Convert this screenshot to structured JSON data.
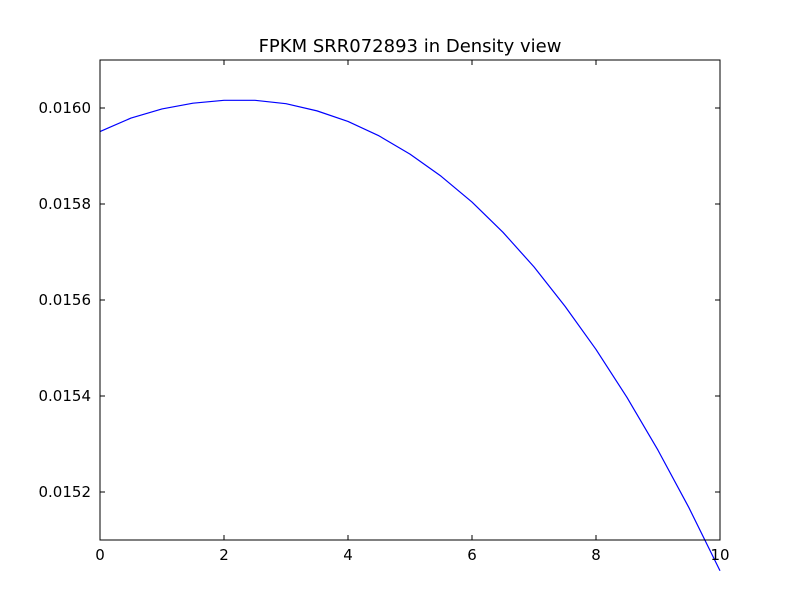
{
  "chart_data": {
    "type": "line",
    "title": "FPKM SRR072893 in Density view",
    "xlabel": "",
    "ylabel": "",
    "xlim": [
      0,
      10
    ],
    "ylim": [
      0.0151,
      0.0161
    ],
    "x_ticks": [
      0,
      2,
      4,
      6,
      8,
      10
    ],
    "x_tick_labels": [
      "0",
      "2",
      "4",
      "6",
      "8",
      "10"
    ],
    "y_ticks": [
      0.0152,
      0.0154,
      0.0156,
      0.0158,
      0.016
    ],
    "y_tick_labels": [
      "0.0152",
      "0.0154",
      "0.0156",
      "0.0158",
      "0.0160"
    ],
    "grid": false,
    "legend": "none",
    "series": [
      {
        "color": "#0000ff",
        "x": [
          0,
          0.5,
          1,
          1.5,
          2,
          2.5,
          3,
          3.5,
          4,
          4.5,
          5,
          5.5,
          6,
          6.5,
          7,
          7.5,
          8,
          8.5,
          9,
          9.5,
          10
        ],
        "y": [
          0.015951,
          0.015979,
          0.015998,
          0.01601,
          0.016016,
          0.016016,
          0.016009,
          0.015994,
          0.015972,
          0.015942,
          0.015904,
          0.015858,
          0.015804,
          0.015741,
          0.015669,
          0.015587,
          0.015497,
          0.015397,
          0.015287,
          0.015167,
          0.015036
        ]
      }
    ]
  }
}
